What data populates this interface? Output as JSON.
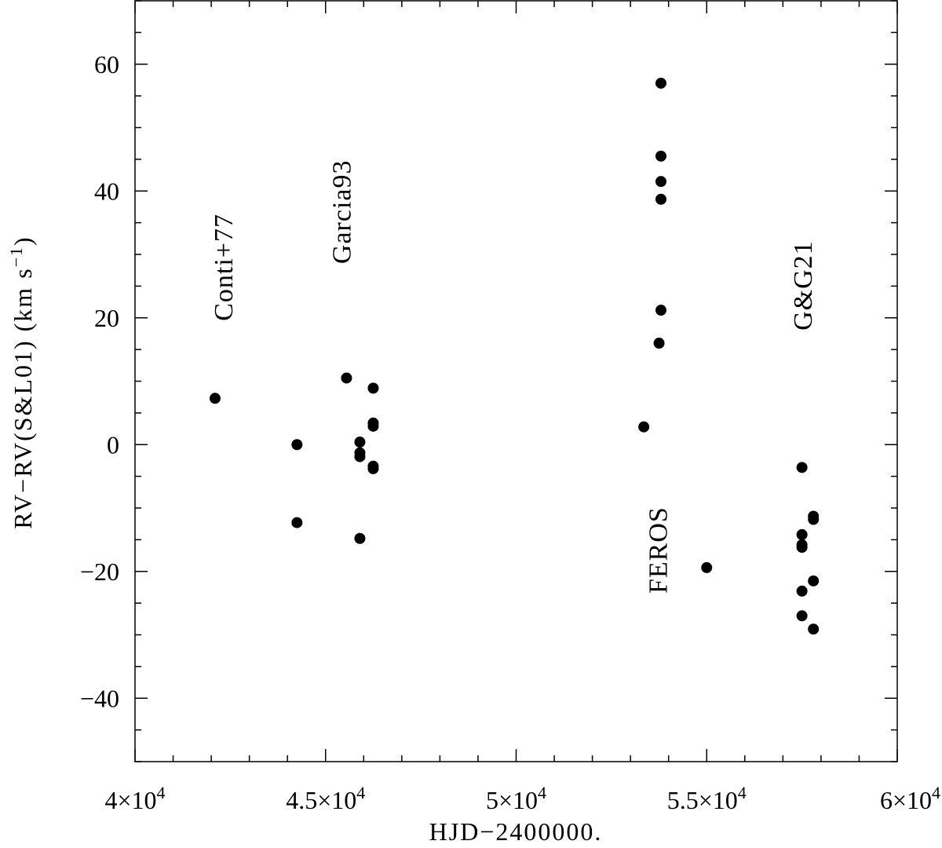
{
  "chart_data": {
    "type": "scatter",
    "title": "",
    "xlabel": "HJD−2400000.",
    "ylabel": "RV−RV(S&L01) (km s",
    "ylabel_exponent": "−1",
    "ylabel_close": ")",
    "xlim": [
      40000,
      60000
    ],
    "ylim": [
      -50,
      70
    ],
    "xticks": [
      {
        "value": 40000,
        "mantissa": "4×10",
        "exp": "4"
      },
      {
        "value": 45000,
        "mantissa": "4.5×10",
        "exp": "4"
      },
      {
        "value": 50000,
        "mantissa": "5×10",
        "exp": "4"
      },
      {
        "value": 55000,
        "mantissa": "5.5×10",
        "exp": "4"
      },
      {
        "value": 60000,
        "mantissa": "6×10",
        "exp": "4"
      }
    ],
    "yticks": [
      {
        "value": -40,
        "label": "−40"
      },
      {
        "value": -20,
        "label": "−20"
      },
      {
        "value": 0,
        "label": "0"
      },
      {
        "value": 20,
        "label": "20"
      },
      {
        "value": 40,
        "label": "40"
      },
      {
        "value": 60,
        "label": "60"
      }
    ],
    "grid": false,
    "legend": "none",
    "marker_color": "#000000",
    "series": [
      {
        "points": [
          {
            "x": 42100,
            "y": 7.3
          },
          {
            "x": 44250,
            "y": 0.0
          },
          {
            "x": 44250,
            "y": -12.3
          },
          {
            "x": 45550,
            "y": 10.5
          },
          {
            "x": 45900,
            "y": 0.4
          },
          {
            "x": 45900,
            "y": -1.3
          },
          {
            "x": 45900,
            "y": -1.9
          },
          {
            "x": 45900,
            "y": -14.8
          },
          {
            "x": 46250,
            "y": 8.9
          },
          {
            "x": 46250,
            "y": 3.4
          },
          {
            "x": 46250,
            "y": 2.9
          },
          {
            "x": 46250,
            "y": -3.4
          },
          {
            "x": 46250,
            "y": -3.8
          },
          {
            "x": 53350,
            "y": 2.8
          },
          {
            "x": 53750,
            "y": 16.0
          },
          {
            "x": 53800,
            "y": 57.0
          },
          {
            "x": 53800,
            "y": 45.5
          },
          {
            "x": 53800,
            "y": 41.5
          },
          {
            "x": 53800,
            "y": 38.7
          },
          {
            "x": 53800,
            "y": 21.2
          },
          {
            "x": 55000,
            "y": -19.4
          },
          {
            "x": 57500,
            "y": -3.6
          },
          {
            "x": 57500,
            "y": -14.2
          },
          {
            "x": 57500,
            "y": -15.8
          },
          {
            "x": 57500,
            "y": -16.2
          },
          {
            "x": 57500,
            "y": -23.1
          },
          {
            "x": 57500,
            "y": -27.0
          },
          {
            "x": 57800,
            "y": -11.3
          },
          {
            "x": 57800,
            "y": -11.8
          },
          {
            "x": 57800,
            "y": -21.5
          },
          {
            "x": 57800,
            "y": -29.1
          }
        ]
      }
    ],
    "annotations": [
      {
        "text": "Conti+77",
        "x": 42550,
        "y": 19.5
      },
      {
        "text": "Garcia93",
        "x": 45650,
        "y": 28.5
      },
      {
        "text": "FEROS",
        "x": 53950,
        "y": -23.5
      },
      {
        "text": "G&G21",
        "x": 57750,
        "y": 18.0
      }
    ]
  }
}
